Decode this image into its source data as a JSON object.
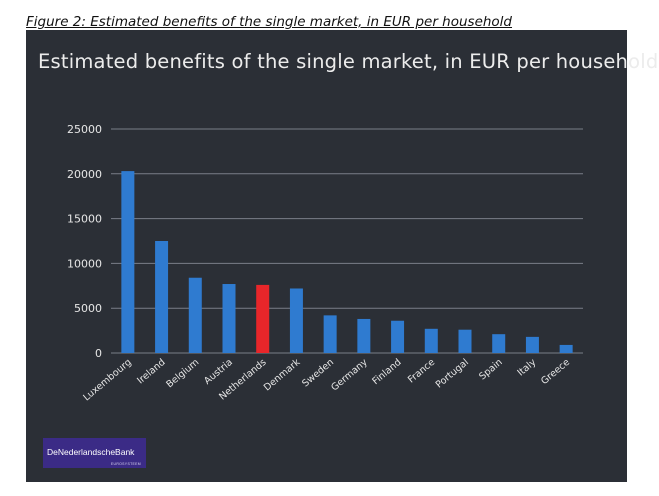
{
  "caption": "Figure 2: Estimated benefits of the single market, in EUR per household",
  "logo": {
    "name": "DeNederlandscheBank",
    "sub": "EUROSYSTEEM"
  },
  "colors": {
    "background": "#2b2f36",
    "bar": "#2f7bd0",
    "highlight": "#e8262a",
    "grid": "#7a7f88",
    "text": "#e6e6e6"
  },
  "chart_data": {
    "type": "bar",
    "title": "Estimated benefits of the single market, in EUR per household",
    "xlabel": "",
    "ylabel": "",
    "categories": [
      "Luxembourg",
      "Ireland",
      "Belgium",
      "Austria",
      "Netherlands",
      "Denmark",
      "Sweden",
      "Germany",
      "Finland",
      "France",
      "Portugal",
      "Spain",
      "Italy",
      "Greece"
    ],
    "values": [
      20300,
      12500,
      8400,
      7700,
      7600,
      7200,
      4200,
      3800,
      3600,
      2700,
      2600,
      2100,
      1800,
      900
    ],
    "highlight": "Netherlands",
    "yticks": [
      0,
      5000,
      10000,
      15000,
      20000,
      25000
    ],
    "ylim": [
      0,
      25000
    ],
    "grid": true,
    "legend": "none"
  }
}
